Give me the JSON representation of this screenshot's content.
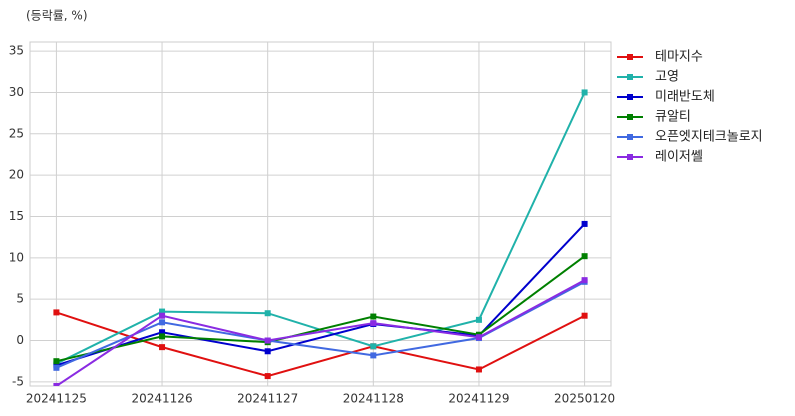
{
  "chart_data": {
    "type": "line",
    "unit_label": "(등락률, %)",
    "categories": [
      "20241125",
      "20241126",
      "20241127",
      "20241128",
      "20241129",
      "20250120"
    ],
    "series": [
      {
        "name": "테마지수",
        "color": "#e01010",
        "values": [
          3.4,
          -0.8,
          -4.3,
          -0.7,
          -3.5,
          3.0
        ]
      },
      {
        "name": "고영",
        "color": "#20b2aa",
        "values": [
          -2.8,
          3.5,
          3.3,
          -0.7,
          2.5,
          30.0
        ]
      },
      {
        "name": "미래반도체",
        "color": "#0000cd",
        "values": [
          -3.0,
          1.0,
          -1.3,
          2.0,
          0.6,
          14.1
        ]
      },
      {
        "name": "큐알티",
        "color": "#008000",
        "values": [
          -2.5,
          0.5,
          -0.2,
          2.9,
          0.7,
          10.2
        ]
      },
      {
        "name": "오픈엣지테크놀로지",
        "color": "#4169e1",
        "values": [
          -3.3,
          2.2,
          0.0,
          -1.8,
          0.3,
          7.1
        ]
      },
      {
        "name": "레이저쎌",
        "color": "#8a2be2",
        "values": [
          -5.5,
          3.0,
          0.0,
          2.1,
          0.4,
          7.3
        ]
      }
    ],
    "ylim": [
      -5.5,
      36.1
    ],
    "yticks": [
      -5,
      0,
      5,
      10,
      15,
      20,
      25,
      30,
      35
    ],
    "grid": true,
    "legend": "right"
  }
}
